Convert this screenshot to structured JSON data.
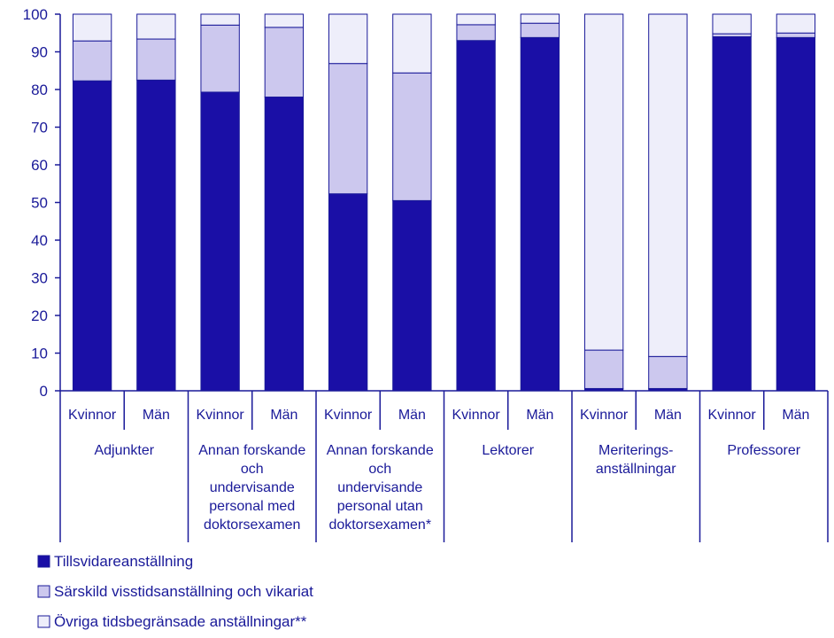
{
  "chart_data": {
    "type": "bar",
    "stacked": true,
    "ylim": [
      0,
      100
    ],
    "yticks": [
      0,
      10,
      20,
      30,
      40,
      50,
      60,
      70,
      80,
      90,
      100
    ],
    "grid": false,
    "legend_position": "bottom-left",
    "colors": {
      "axis": "#1a1a99",
      "text": "#1a1a99",
      "series": [
        "#1a0fa6",
        "#ccc8ee",
        "#eeeefa"
      ]
    },
    "groups": [
      {
        "label": [
          "Adjunkter"
        ],
        "categories": [
          "Kvinnor",
          "Män"
        ]
      },
      {
        "label": [
          "Annan forskande",
          "och",
          "undervisande",
          "personal med",
          "doktorsexamen"
        ],
        "categories": [
          "Kvinnor",
          "Män"
        ]
      },
      {
        "label": [
          "Annan forskande",
          "och",
          "undervisande",
          "personal utan",
          "doktorsexamen*"
        ],
        "categories": [
          "Kvinnor",
          "Män"
        ]
      },
      {
        "label": [
          "Lektorer"
        ],
        "categories": [
          "Kvinnor",
          "Män"
        ]
      },
      {
        "label": [
          "Meriterings-",
          "anställningar"
        ],
        "categories": [
          "Kvinnor",
          "Män"
        ]
      },
      {
        "label": [
          "Professorer"
        ],
        "categories": [
          "Kvinnor",
          "Män"
        ]
      }
    ],
    "series": [
      {
        "name": "Tillsvidareanställning",
        "values": [
          82.3,
          82.5,
          79.3,
          78.0,
          52.3,
          50.5,
          93.0,
          93.8,
          0.6,
          0.6,
          94.0,
          93.8
        ]
      },
      {
        "name": "Särskild visstidsanställning och vikariat",
        "values": [
          10.6,
          10.9,
          17.8,
          18.5,
          34.6,
          33.9,
          4.2,
          3.8,
          10.2,
          8.5,
          0.8,
          1.2
        ]
      },
      {
        "name": "Övriga tidsbegränsade anställningar**",
        "values": [
          7.1,
          6.6,
          2.9,
          3.5,
          13.1,
          15.6,
          2.8,
          2.4,
          89.2,
          90.9,
          5.2,
          5.0
        ]
      }
    ]
  }
}
